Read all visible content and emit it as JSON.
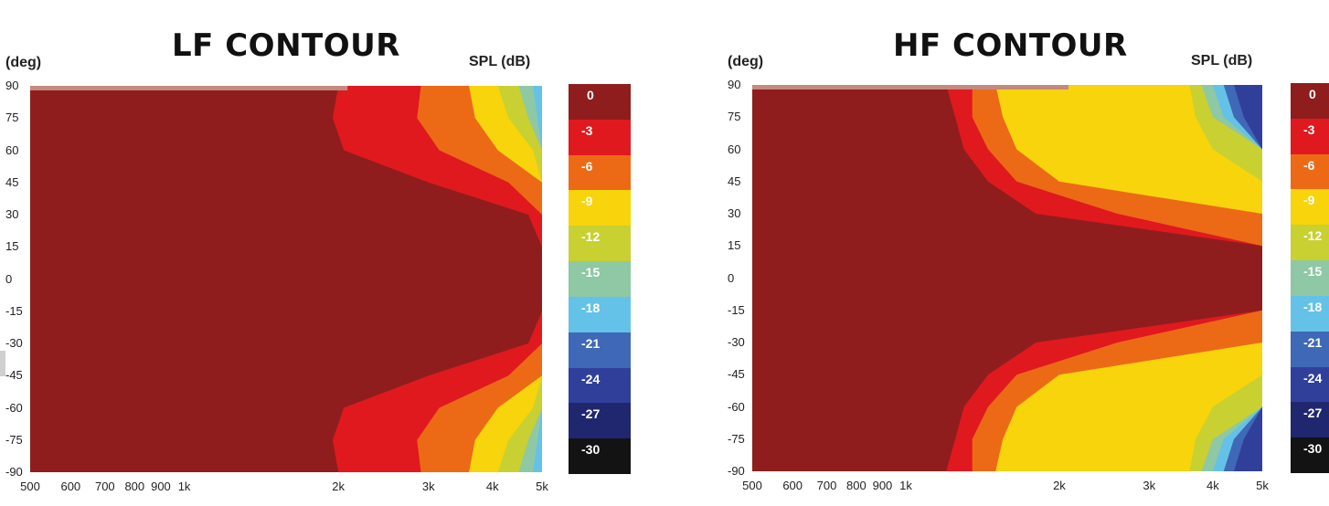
{
  "chart_data": [
    {
      "type": "heatmap",
      "title": "LF CONTOUR",
      "ylabel": "(deg)",
      "colorbar_label": "SPL (dB)",
      "y_ticks": [
        "90",
        "75",
        "60",
        "45",
        "30",
        "15",
        "0",
        "-15",
        "-30",
        "-45",
        "-60",
        "-75",
        "-90"
      ],
      "x_ticks": [
        "500",
        "600",
        "700",
        "800",
        "900",
        "1k",
        "2k",
        "3k",
        "4k",
        "5k"
      ],
      "x_tick_values": [
        500,
        600,
        700,
        800,
        900,
        1000,
        2000,
        3000,
        4000,
        5000
      ],
      "xlim": [
        500,
        5000
      ],
      "x_scale": "log",
      "ylim": [
        -90,
        90
      ],
      "contour_edges_hz": {
        "levels": [
          -3,
          -6,
          -9,
          -12,
          -15,
          -18
        ],
        "angles": [
          0,
          15,
          30,
          45,
          60,
          75,
          90
        ],
        "edges": [
          [
            5000,
            5000,
            4700,
            3000,
            2050,
            1950,
            2000
          ],
          [
            5000,
            5000,
            5000,
            4300,
            3150,
            2850,
            2900
          ],
          [
            5000,
            5000,
            5000,
            5000,
            4100,
            3700,
            3600
          ],
          [
            5000,
            5000,
            5000,
            5000,
            4800,
            4300,
            4100
          ],
          [
            5000,
            5000,
            5000,
            5000,
            5000,
            4700,
            4500
          ],
          [
            5000,
            5000,
            5000,
            5000,
            5000,
            4900,
            4800
          ]
        ]
      }
    },
    {
      "type": "heatmap",
      "title": "HF CONTOUR",
      "ylabel": "(deg)",
      "colorbar_label": "SPL (dB)",
      "y_ticks": [
        "90",
        "75",
        "60",
        "45",
        "30",
        "15",
        "0",
        "-15",
        "-30",
        "-45",
        "-60",
        "-75",
        "-90"
      ],
      "x_ticks": [
        "500",
        "600",
        "700",
        "800",
        "900",
        "1k",
        "2k",
        "3k",
        "4k",
        "5k"
      ],
      "x_tick_values": [
        500,
        600,
        700,
        800,
        900,
        1000,
        2000,
        3000,
        4000,
        5000
      ],
      "xlim": [
        500,
        5000
      ],
      "x_scale": "log",
      "ylim": [
        -90,
        90
      ],
      "contour_edges_hz": {
        "levels": [
          -3,
          -6,
          -9,
          -12,
          -15,
          -18,
          -21,
          -24
        ],
        "angles": [
          0,
          15,
          30,
          45,
          60,
          75,
          90
        ],
        "edges": [
          [
            5000,
            5000,
            1800,
            1450,
            1300,
            1250,
            1200
          ],
          [
            5000,
            5000,
            2600,
            1650,
            1450,
            1350,
            1350
          ],
          [
            5000,
            5000,
            5000,
            2000,
            1650,
            1550,
            1500
          ],
          [
            5000,
            5000,
            5000,
            5000,
            4000,
            3700,
            3600
          ],
          [
            5000,
            5000,
            5000,
            5000,
            5000,
            4000,
            3800
          ],
          [
            5000,
            5000,
            5000,
            5000,
            5000,
            4200,
            4000
          ],
          [
            5000,
            5000,
            5000,
            5000,
            5000,
            4400,
            4200
          ],
          [
            5000,
            5000,
            5000,
            5000,
            5000,
            4600,
            4400
          ]
        ]
      }
    }
  ],
  "colorbar": {
    "labels": [
      "0",
      "-3",
      "-6",
      "-9",
      "-12",
      "-15",
      "-18",
      "-21",
      "-24",
      "-27",
      "-30"
    ],
    "colors": [
      "#8f1d1d",
      "#e0191e",
      "#ec6a16",
      "#f7d40c",
      "#c9d032",
      "#8ec8a4",
      "#64c2e8",
      "#3f68b6",
      "#30409a",
      "#21276f",
      "#131313"
    ]
  },
  "colors": {
    "top_strip": "#c4897f"
  }
}
